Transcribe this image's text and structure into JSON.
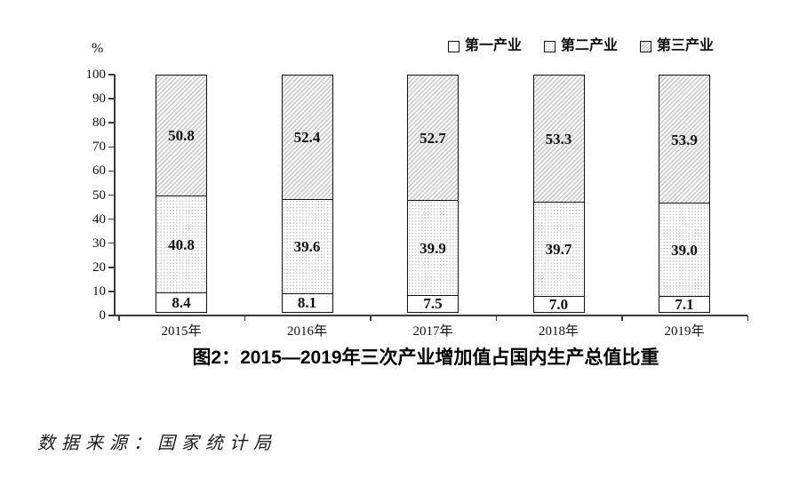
{
  "figure": {
    "source_note": "数据来源：国家统计局"
  },
  "chart_data": {
    "type": "bar",
    "stacked": true,
    "title": "图2：2015—2019年三次产业增加值占国内生产总值比重",
    "categories": [
      "2015年",
      "2016年",
      "2017年",
      "2018年",
      "2019年"
    ],
    "series": [
      {
        "name": "第一产业",
        "pattern": "plain",
        "values": [
          8.4,
          8.1,
          7.5,
          7.0,
          7.1
        ]
      },
      {
        "name": "第二产业",
        "pattern": "dots",
        "values": [
          40.8,
          39.6,
          39.9,
          39.7,
          39.0
        ]
      },
      {
        "name": "第三产业",
        "pattern": "diagonal-hatch",
        "values": [
          50.8,
          52.4,
          52.7,
          53.3,
          53.9
        ]
      }
    ],
    "ylabel": "%",
    "xlabel": "",
    "ylim": [
      0,
      100
    ],
    "yticks": [
      0,
      10,
      20,
      30,
      40,
      50,
      60,
      70,
      80,
      90,
      100
    ],
    "grid": false,
    "legend_position": "top-right",
    "value_labels_decimals": 1,
    "colors": {
      "ink": "#111111",
      "axis": "#3a3a3a",
      "hatch_line": "#c6c6c6",
      "dot": "#c8c8c8",
      "background": "#ffffff"
    }
  }
}
